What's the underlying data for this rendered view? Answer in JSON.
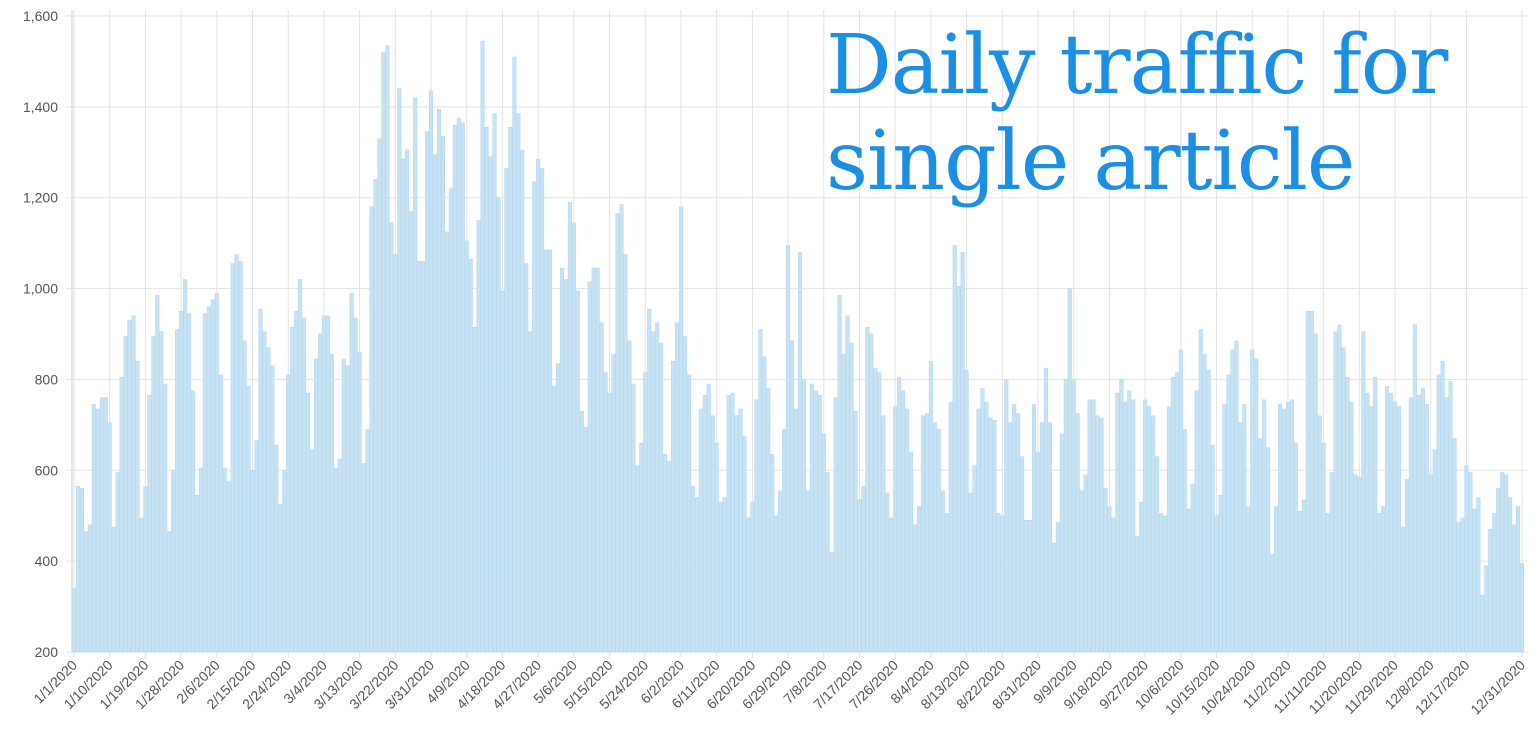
{
  "chart_data": {
    "type": "bar",
    "title": "Daily traffic for single article",
    "color": "#c6e2f3",
    "grid": true,
    "ylim": [
      200,
      1600
    ],
    "yticks": [
      200,
      400,
      600,
      800,
      {
        "value": 1000,
        "label": "1,000"
      },
      {
        "value": 1200,
        "label": "1,200"
      },
      {
        "value": 1400,
        "label": "1,400"
      },
      {
        "value": 1600,
        "label": "1,600"
      }
    ],
    "categories": [
      "1/1/2020",
      null,
      null,
      null,
      null,
      null,
      null,
      null,
      null,
      "1/10/2020",
      null,
      null,
      null,
      null,
      null,
      null,
      null,
      null,
      "1/19/2020",
      null,
      null,
      null,
      null,
      null,
      null,
      null,
      null,
      "1/28/2020",
      null,
      null,
      null,
      null,
      null,
      null,
      null,
      null,
      "2/6/2020",
      null,
      null,
      null,
      null,
      null,
      null,
      null,
      null,
      "2/15/2020",
      null,
      null,
      null,
      null,
      null,
      null,
      null,
      null,
      "2/24/2020",
      null,
      null,
      null,
      null,
      null,
      null,
      null,
      null,
      "3/4/2020",
      null,
      null,
      null,
      null,
      null,
      null,
      null,
      null,
      "3/13/2020",
      null,
      null,
      null,
      null,
      null,
      null,
      null,
      null,
      "3/22/2020",
      null,
      null,
      null,
      null,
      null,
      null,
      null,
      null,
      "3/31/2020",
      null,
      null,
      null,
      null,
      null,
      null,
      null,
      null,
      "4/9/2020",
      null,
      null,
      null,
      null,
      null,
      null,
      null,
      null,
      "4/18/2020",
      null,
      null,
      null,
      null,
      null,
      null,
      null,
      null,
      "4/27/2020",
      null,
      null,
      null,
      null,
      null,
      null,
      null,
      null,
      "5/6/2020",
      null,
      null,
      null,
      null,
      null,
      null,
      null,
      null,
      "5/15/2020",
      null,
      null,
      null,
      null,
      null,
      null,
      null,
      null,
      "5/24/2020",
      null,
      null,
      null,
      null,
      null,
      null,
      null,
      null,
      "6/2/2020",
      null,
      null,
      null,
      null,
      null,
      null,
      null,
      null,
      "6/11/2020",
      null,
      null,
      null,
      null,
      null,
      null,
      null,
      null,
      "6/20/2020",
      null,
      null,
      null,
      null,
      null,
      null,
      null,
      null,
      "6/29/2020",
      null,
      null,
      null,
      null,
      null,
      null,
      null,
      null,
      "7/8/2020",
      null,
      null,
      null,
      null,
      null,
      null,
      null,
      null,
      "7/17/2020",
      null,
      null,
      null,
      null,
      null,
      null,
      null,
      null,
      "7/26/2020",
      null,
      null,
      null,
      null,
      null,
      null,
      null,
      null,
      "8/4/2020",
      null,
      null,
      null,
      null,
      null,
      null,
      null,
      null,
      "8/13/2020",
      null,
      null,
      null,
      null,
      null,
      null,
      null,
      null,
      "8/22/2020",
      null,
      null,
      null,
      null,
      null,
      null,
      null,
      null,
      "8/31/2020",
      null,
      null,
      null,
      null,
      null,
      null,
      null,
      null,
      "9/9/2020",
      null,
      null,
      null,
      null,
      null,
      null,
      null,
      null,
      "9/18/2020",
      null,
      null,
      null,
      null,
      null,
      null,
      null,
      null,
      "9/27/2020",
      null,
      null,
      null,
      null,
      null,
      null,
      null,
      null,
      "10/6/2020",
      null,
      null,
      null,
      null,
      null,
      null,
      null,
      null,
      "10/15/2020",
      null,
      null,
      null,
      null,
      null,
      null,
      null,
      null,
      "10/24/2020",
      null,
      null,
      null,
      null,
      null,
      null,
      null,
      null,
      "11/2/2020",
      null,
      null,
      null,
      null,
      null,
      null,
      null,
      null,
      "11/11/2020",
      null,
      null,
      null,
      null,
      null,
      null,
      null,
      null,
      "11/20/2020",
      null,
      null,
      null,
      null,
      null,
      null,
      null,
      null,
      "11/29/2020",
      null,
      null,
      null,
      null,
      null,
      null,
      null,
      null,
      "12/8/2020",
      null,
      null,
      null,
      null,
      null,
      null,
      null,
      null,
      "12/17/2020",
      null,
      null,
      null,
      null,
      null,
      null,
      null,
      null,
      null,
      null,
      null,
      null,
      null,
      "12/31/2020"
    ],
    "values": [
      340,
      565,
      560,
      465,
      480,
      745,
      735,
      760,
      760,
      705,
      475,
      595,
      805,
      895,
      930,
      940,
      840,
      495,
      565,
      765,
      895,
      985,
      905,
      790,
      465,
      600,
      910,
      950,
      1020,
      945,
      775,
      545,
      605,
      945,
      960,
      975,
      990,
      810,
      605,
      575,
      1055,
      1075,
      1060,
      885,
      785,
      600,
      665,
      955,
      905,
      870,
      830,
      655,
      525,
      600,
      810,
      915,
      950,
      1020,
      935,
      770,
      645,
      845,
      900,
      940,
      940,
      855,
      605,
      625,
      845,
      830,
      990,
      935,
      860,
      615,
      690,
      1180,
      1240,
      1330,
      1520,
      1535,
      1145,
      1075,
      1440,
      1285,
      1305,
      1170,
      1420,
      1060,
      1060,
      1345,
      1435,
      1295,
      1395,
      1335,
      1125,
      1220,
      1360,
      1375,
      1365,
      1105,
      1065,
      915,
      1150,
      1545,
      1355,
      1290,
      1385,
      1200,
      995,
      1265,
      1355,
      1510,
      1385,
      1305,
      1055,
      905,
      1235,
      1285,
      1265,
      1085,
      1085,
      785,
      835,
      1045,
      1020,
      1190,
      1145,
      995,
      730,
      695,
      1015,
      1045,
      1045,
      925,
      815,
      770,
      855,
      1165,
      1185,
      1075,
      885,
      790,
      610,
      660,
      815,
      955,
      905,
      925,
      880,
      635,
      620,
      840,
      925,
      1180,
      895,
      810,
      565,
      540,
      735,
      765,
      790,
      720,
      660,
      530,
      540,
      765,
      770,
      720,
      735,
      675,
      495,
      530,
      755,
      910,
      850,
      780,
      635,
      500,
      555,
      690,
      1095,
      885,
      735,
      1080,
      800,
      555,
      790,
      775,
      765,
      680,
      595,
      420,
      760,
      985,
      855,
      940,
      880,
      730,
      535,
      565,
      915,
      900,
      825,
      815,
      720,
      550,
      495,
      740,
      805,
      775,
      735,
      640,
      480,
      520,
      720,
      725,
      840,
      705,
      690,
      555,
      505,
      750,
      1095,
      1005,
      1080,
      820,
      550,
      610,
      735,
      780,
      750,
      715,
      710,
      505,
      500,
      800,
      705,
      745,
      725,
      630,
      490,
      490,
      745,
      640,
      705,
      825,
      705,
      440,
      485,
      680,
      800,
      1000,
      800,
      725,
      555,
      590,
      755,
      755,
      720,
      715,
      560,
      520,
      495,
      770,
      800,
      750,
      775,
      755,
      455,
      530,
      755,
      740,
      720,
      630,
      505,
      500,
      740,
      805,
      815,
      865,
      690,
      515,
      570,
      775,
      910,
      855,
      820,
      655,
      500,
      545,
      745,
      810,
      865,
      885,
      705,
      745,
      520,
      865,
      845,
      670,
      755,
      650,
      415,
      520,
      745,
      735,
      750,
      755,
      660,
      510,
      535,
      950,
      950,
      900,
      720,
      660,
      505,
      595,
      905,
      920,
      870,
      805,
      750,
      590,
      585,
      905,
      770,
      740,
      805,
      505,
      520,
      785,
      770,
      750,
      740,
      475,
      580,
      760,
      920,
      765,
      780,
      745,
      590,
      645,
      810,
      840,
      760,
      795,
      670,
      485,
      495,
      610,
      595,
      515,
      540,
      325,
      390,
      470,
      505,
      560,
      595,
      590,
      540,
      480,
      520,
      395
    ]
  }
}
